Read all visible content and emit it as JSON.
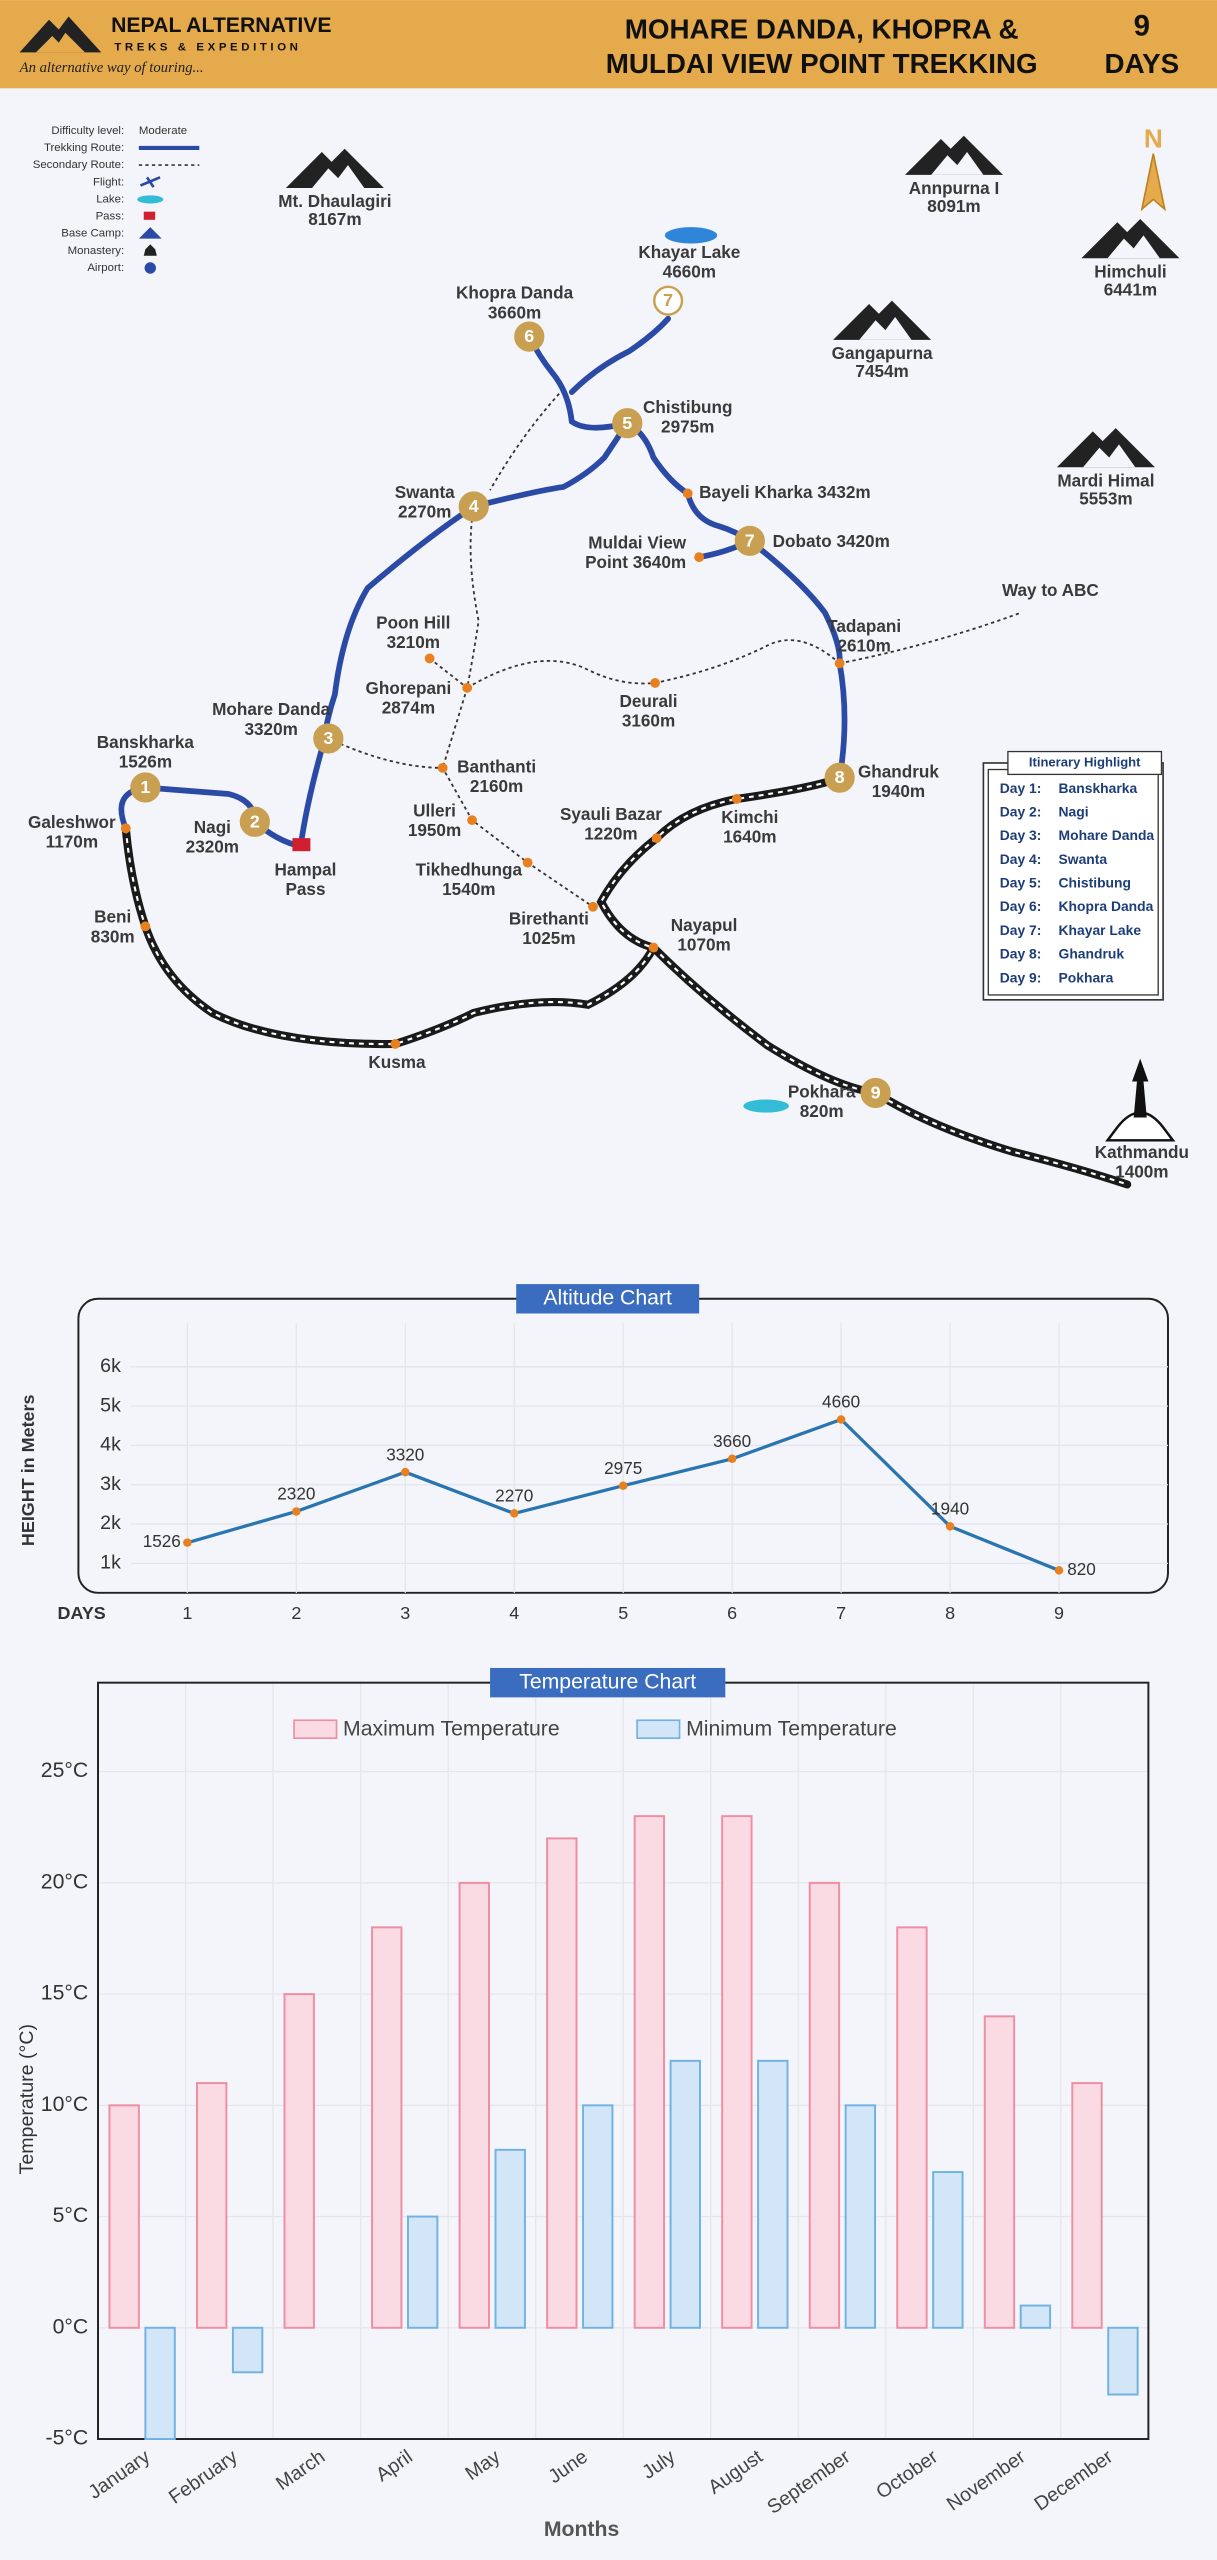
{
  "header": {
    "brand": "NEPAL ALTERNATIVE",
    "brand_sub": "TREKS & EXPEDITION",
    "tagline": "An alternative way of touring...",
    "title_lines": [
      "MOHARE DANDA, KHOPRA &",
      "MULDAI VIEW POINT TREKKING"
    ],
    "days_number": "9",
    "days_label": "DAYS"
  },
  "legend": {
    "difficulty_label": "Difficulty level:",
    "difficulty": "Moderate",
    "items": [
      "Trekking Route:",
      "Secondary Route:",
      "Flight:",
      "Lake:",
      "Pass:",
      "Base Camp:",
      "Monastery:",
      "Airport:"
    ]
  },
  "map": {
    "compass": "N",
    "mountains": [
      [
        "Mt. Dhaulagiri",
        "8167m"
      ],
      [
        "Annpurna I",
        "8091m"
      ],
      [
        "Himchuli",
        "6441m"
      ],
      [
        "Gangapurna",
        "7454m"
      ],
      [
        "Mardi Himal",
        "5553m"
      ]
    ],
    "places": [
      [
        "Khayar Lake",
        "4660m"
      ],
      [
        "Khopra Danda",
        "3660m"
      ],
      [
        "Chistibung",
        "2975m"
      ],
      [
        "Swanta",
        "2270m"
      ],
      [
        "Bayeli Kharka 3432m"
      ],
      [
        "Muldai View",
        "Point 3640m"
      ],
      [
        "Dobato 3420m"
      ],
      [
        "Way to ABC"
      ],
      [
        "Poon Hill",
        "3210m"
      ],
      [
        "Tadapani",
        "2610m"
      ],
      [
        "Ghorepani",
        "2874m"
      ],
      [
        "Deurali",
        "3160m"
      ],
      [
        "Mohare Danda",
        "3320m"
      ],
      [
        "Banskharka",
        "1526m"
      ],
      [
        "Banthanti",
        "2160m"
      ],
      [
        "Ghandruk",
        "1940m"
      ],
      [
        "Galeshwor",
        "1170m"
      ],
      [
        "Nagi",
        "2320m"
      ],
      [
        "Hampal",
        "Pass"
      ],
      [
        "Ulleri",
        "1950m"
      ],
      [
        "Syauli Bazar",
        "1220m"
      ],
      [
        "Kimchi",
        "1640m"
      ],
      [
        "Tikhedhunga",
        "1540m"
      ],
      [
        "Birethanti",
        "1025m"
      ],
      [
        "Nayapul",
        "1070m"
      ],
      [
        "Beni",
        "830m"
      ],
      [
        "Kusma"
      ],
      [
        "Pokhara",
        "820m"
      ],
      [
        "Kathmandu",
        "1400m"
      ]
    ],
    "day_markers": [
      "1",
      "2",
      "3",
      "4",
      "5",
      "6",
      "7",
      "7",
      "8",
      "9"
    ]
  },
  "itinerary": {
    "title": "Itinerary Highlight",
    "rows": [
      [
        "Day 1:",
        "Banskharka"
      ],
      [
        "Day 2:",
        "Nagi"
      ],
      [
        "Day 3:",
        "Mohare Danda"
      ],
      [
        "Day 4:",
        "Swanta"
      ],
      [
        "Day 5:",
        "Chistibung"
      ],
      [
        "Day 6:",
        "Khopra Danda"
      ],
      [
        "Day 7:",
        "Khayar Lake"
      ],
      [
        "Day 8:",
        "Ghandruk"
      ],
      [
        "Day 9:",
        "Pokhara"
      ]
    ]
  },
  "chart_data": [
    {
      "type": "line",
      "title": "Altitude Chart",
      "x_label": "DAYS",
      "y_label": "HEIGHT in Meters",
      "color": "#2a74b0",
      "marker_color": "#e8801f",
      "x": [
        1,
        2,
        3,
        4,
        5,
        6,
        7,
        8,
        9
      ],
      "values": [
        1526,
        2320,
        3320,
        2270,
        2975,
        3660,
        4660,
        1940,
        820
      ],
      "xlim": [
        0,
        10
      ],
      "xticks": [
        1,
        2,
        3,
        4,
        5,
        6,
        7,
        8,
        9
      ],
      "ylim": [
        250,
        6900
      ],
      "yticks": [
        {
          "value": 1000,
          "label": "1k"
        },
        {
          "value": 2000,
          "label": "2k"
        },
        {
          "value": 3000,
          "label": "3k"
        },
        {
          "value": 4000,
          "label": "4k"
        },
        {
          "value": 5000,
          "label": "5k"
        },
        {
          "value": 6000,
          "label": "6k"
        }
      ],
      "grid": true
    },
    {
      "type": "bar",
      "title": "Temperature Chart",
      "x_label": "Months",
      "y_label": "Temperature (°C)",
      "categories": [
        "January",
        "February",
        "March",
        "April",
        "May",
        "June",
        "July",
        "August",
        "September",
        "October",
        "November",
        "December"
      ],
      "series": [
        {
          "name": "Maximum Temperature",
          "color": "#fadbe3",
          "edge": "#ef8ea2",
          "values": [
            10,
            11,
            15,
            18,
            20,
            22,
            23,
            23,
            20,
            18,
            14,
            11
          ]
        },
        {
          "name": "Minimum Temperature",
          "color": "#d3e6f8",
          "edge": "#70b2e2",
          "values": [
            -5,
            -2,
            0,
            5,
            8,
            10,
            12,
            12,
            10,
            7,
            1,
            -3
          ]
        }
      ],
      "ylim": [
        -5,
        29
      ],
      "yticks": [
        {
          "value": -5,
          "label": "-5°C"
        },
        {
          "value": 0,
          "label": "0°C"
        },
        {
          "value": 5,
          "label": "5°C"
        },
        {
          "value": 10,
          "label": "10°C"
        },
        {
          "value": 15,
          "label": "15°C"
        },
        {
          "value": 20,
          "label": "20°C"
        },
        {
          "value": 25,
          "label": "25°C"
        }
      ],
      "grid": true
    }
  ]
}
